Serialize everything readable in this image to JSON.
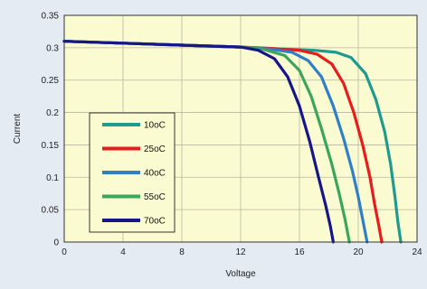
{
  "chart_data": {
    "type": "line",
    "title": "",
    "xlabel": "Voltage",
    "ylabel": "Current",
    "xlim": [
      0,
      24
    ],
    "ylim": [
      0,
      0.35
    ],
    "xticks": [
      0,
      4,
      8,
      12,
      16,
      20,
      24
    ],
    "yticks": [
      0,
      0.05,
      0.1,
      0.15,
      0.2,
      0.25,
      0.3,
      0.35
    ],
    "xtick_labels": [
      "0",
      "4",
      "8",
      "12",
      "16",
      "20",
      "24"
    ],
    "ytick_labels": [
      "0",
      "0.05",
      "0.1",
      "0.15",
      "0.2",
      "0.25",
      "0.3",
      "0.35"
    ],
    "grid": true,
    "legend_position": "lower-left",
    "background_color": "#fbfbd2",
    "series": [
      {
        "name": "10oC",
        "color": "#1f9a8f",
        "x": [
          0,
          4,
          8,
          12,
          15,
          17,
          18.5,
          19.5,
          20.5,
          21.2,
          21.8,
          22.2,
          22.5,
          22.7,
          22.9
        ],
        "y": [
          0.31,
          0.307,
          0.304,
          0.301,
          0.298,
          0.296,
          0.293,
          0.285,
          0.26,
          0.22,
          0.17,
          0.12,
          0.07,
          0.03,
          0
        ]
      },
      {
        "name": "25oC",
        "color": "#e81c1c",
        "x": [
          0,
          4,
          8,
          12,
          14,
          16,
          17.2,
          18.2,
          19,
          19.7,
          20.3,
          20.8,
          21.1,
          21.4,
          21.6
        ],
        "y": [
          0.31,
          0.307,
          0.304,
          0.301,
          0.299,
          0.296,
          0.29,
          0.275,
          0.245,
          0.2,
          0.15,
          0.1,
          0.06,
          0.025,
          0
        ]
      },
      {
        "name": "40oC",
        "color": "#2f7fc8",
        "x": [
          0,
          4,
          8,
          12,
          14,
          15.5,
          16.6,
          17.5,
          18.3,
          19,
          19.6,
          20,
          20.3,
          20.6
        ],
        "y": [
          0.31,
          0.307,
          0.304,
          0.301,
          0.298,
          0.293,
          0.28,
          0.255,
          0.21,
          0.16,
          0.11,
          0.07,
          0.035,
          0
        ]
      },
      {
        "name": "55oC",
        "color": "#3aa55b",
        "x": [
          0,
          4,
          8,
          12,
          13.5,
          15,
          16,
          16.8,
          17.5,
          18.2,
          18.7,
          19.1,
          19.4
        ],
        "y": [
          0.31,
          0.307,
          0.304,
          0.301,
          0.298,
          0.288,
          0.265,
          0.225,
          0.175,
          0.12,
          0.075,
          0.035,
          0
        ]
      },
      {
        "name": "70oC",
        "color": "#16168a",
        "x": [
          0,
          4,
          8,
          12,
          13.2,
          14.3,
          15.2,
          16,
          16.7,
          17.3,
          17.8,
          18.1,
          18.3
        ],
        "y": [
          0.31,
          0.307,
          0.304,
          0.301,
          0.296,
          0.283,
          0.255,
          0.21,
          0.155,
          0.1,
          0.055,
          0.025,
          0
        ]
      }
    ]
  }
}
